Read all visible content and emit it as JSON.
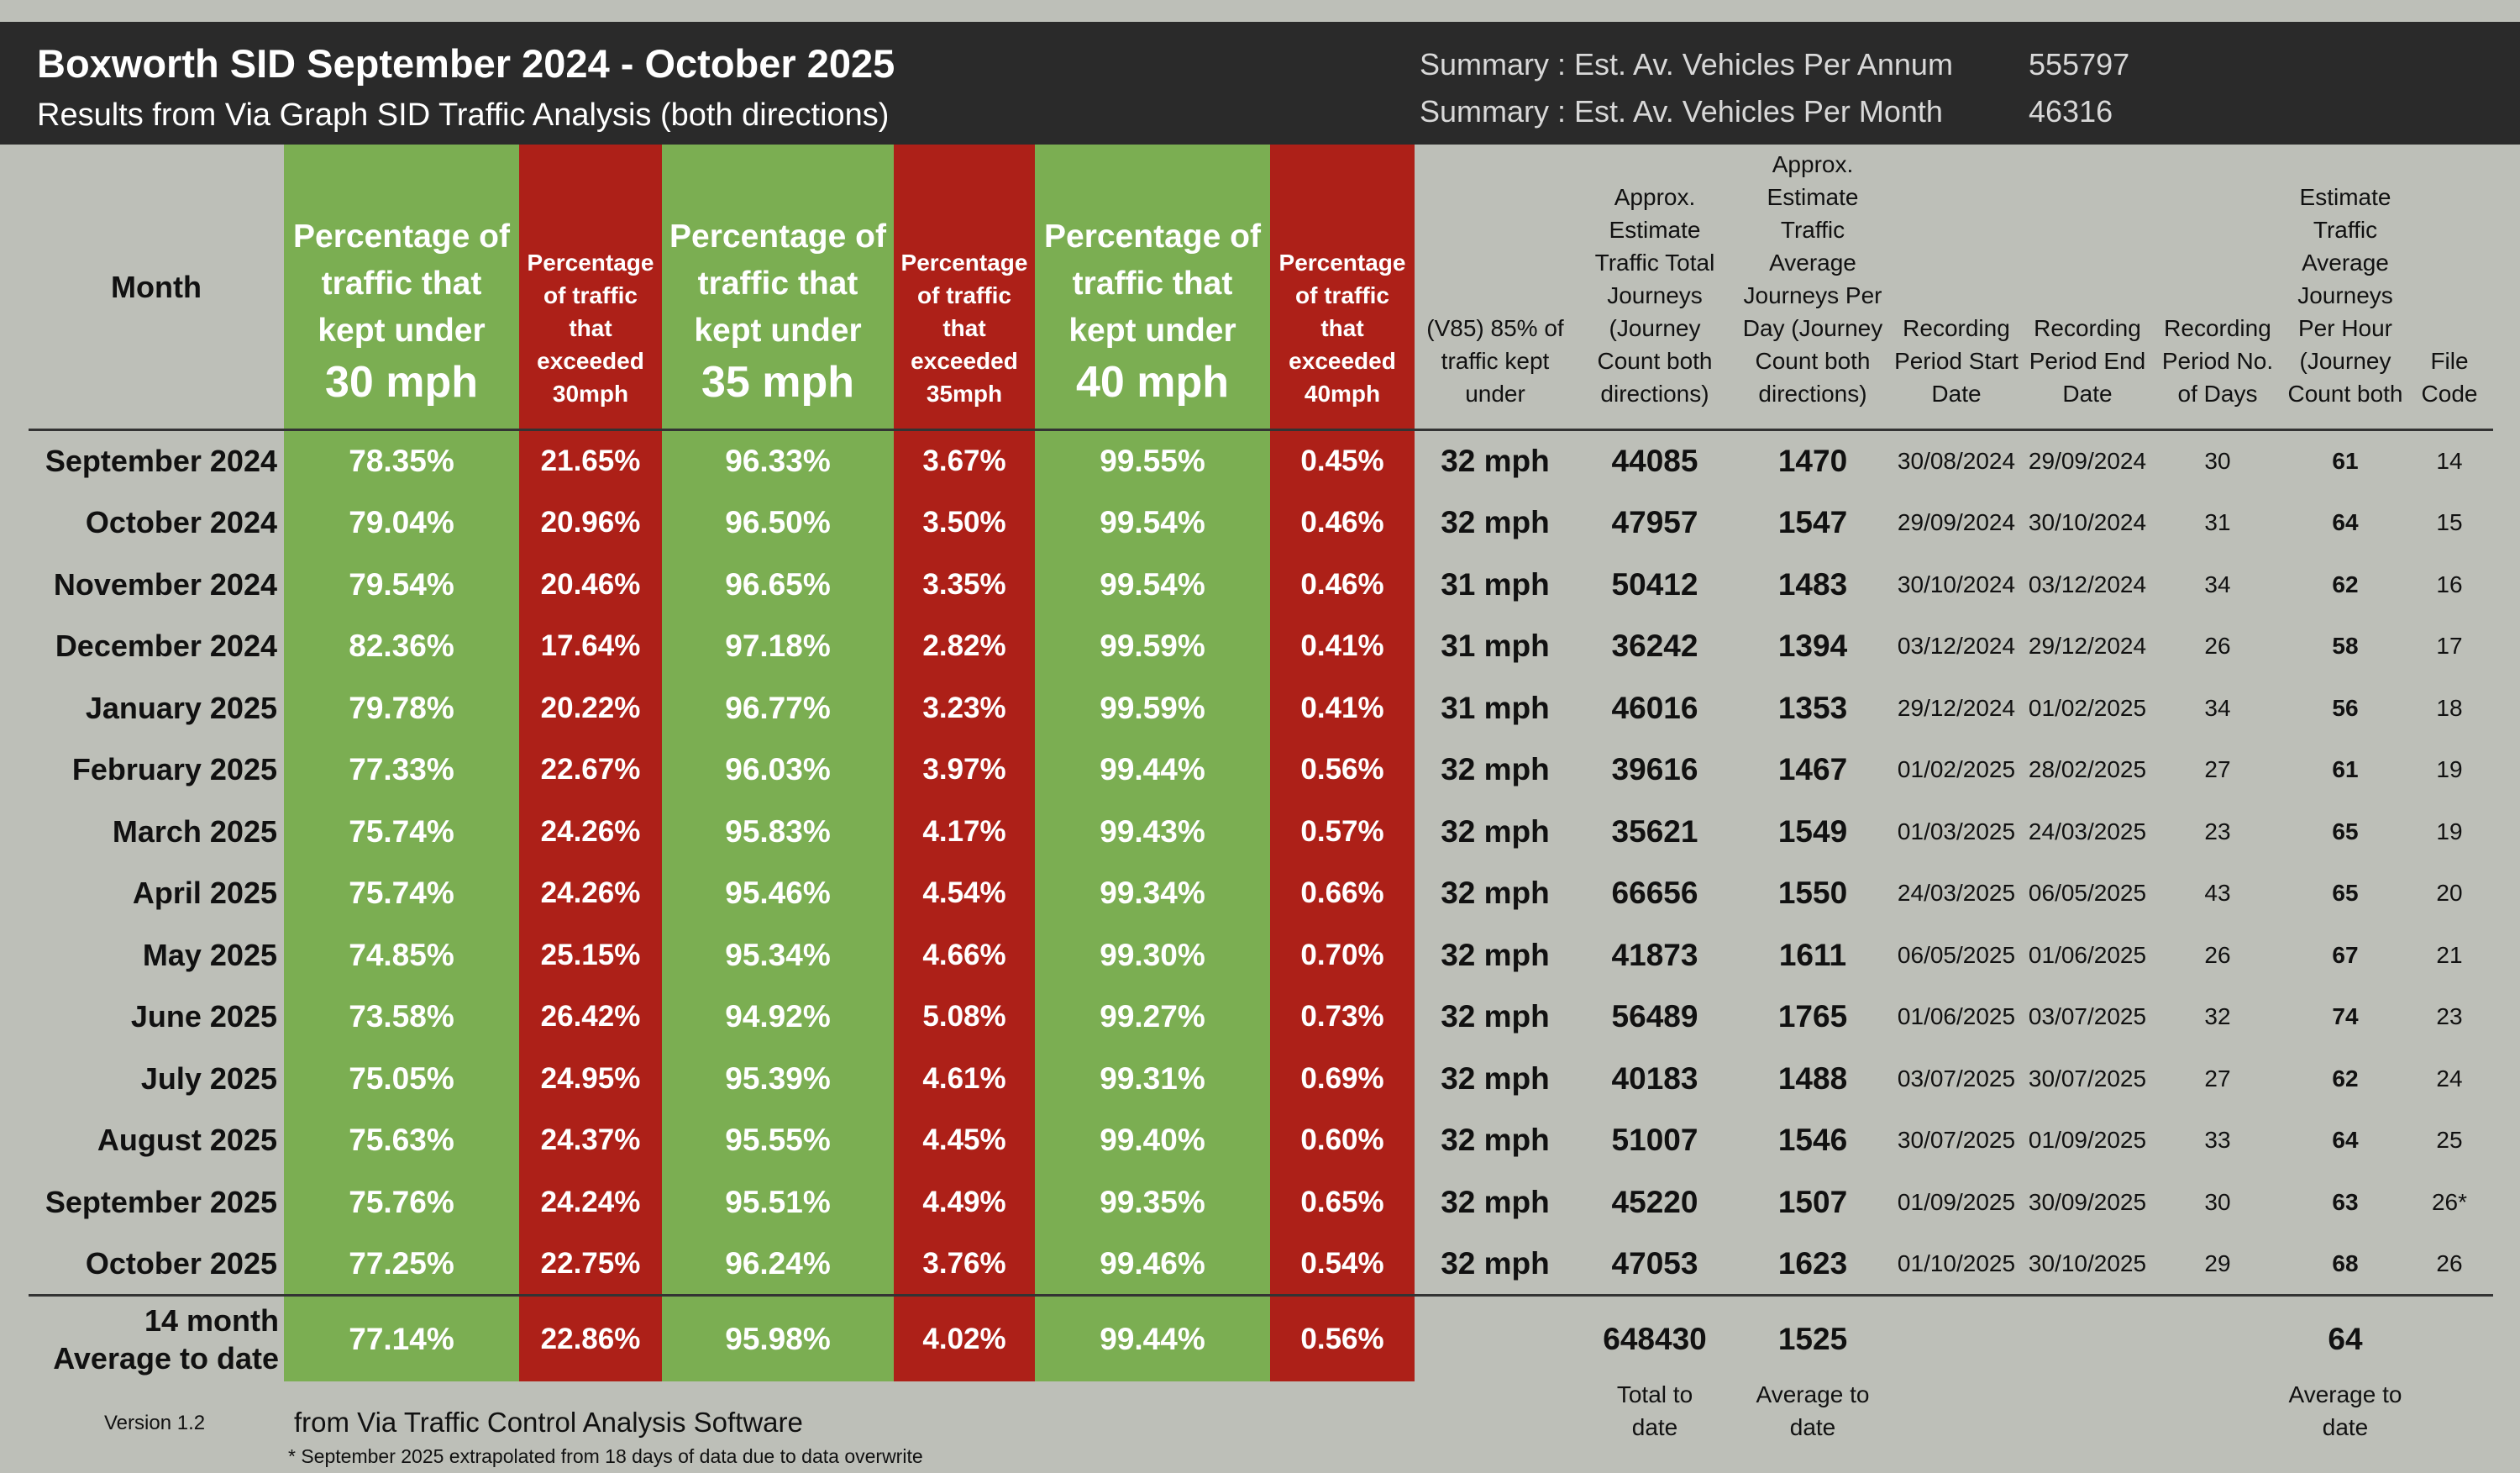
{
  "header": {
    "title": "Boxworth SID September 2024 - October 2025",
    "subtitle": "Results from Via Graph SID Traffic Analysis (both directions)",
    "summary": [
      {
        "label": "Summary : Est. Av. Vehicles Per Annum",
        "value": "555797"
      },
      {
        "label": "Summary : Est. Av. Vehicles Per Month",
        "value": "46316"
      }
    ]
  },
  "columns": {
    "month": "Month",
    "kept30": {
      "text": "Percentage of traffic that kept under",
      "speed": "30 mph"
    },
    "exceeded30": "Percentage of traffic that exceeded 30mph",
    "kept35": {
      "text": "Percentage of traffic that kept under",
      "speed": "35 mph"
    },
    "exceeded35": "Percentage of  traffic that exceeded 35mph",
    "kept40": {
      "text": "Percentage of traffic that kept under",
      "speed": "40 mph"
    },
    "exceeded40": "Percentage of traffic that exceeded 40mph",
    "v85": "(V85) 85% of traffic kept under",
    "total": "Approx. Estimate Traffic Total Journeys (Journey Count both directions)",
    "perday": "Approx. Estimate Traffic Average Journeys Per Day (Journey Count both directions)",
    "start": "Recording Period Start Date",
    "end": "Recording Period End Date",
    "days": "Recording Period No. of Days",
    "perhour": "Estimate Traffic Average Journeys Per Hour (Journey Count both",
    "code": "File Code"
  },
  "rows": [
    {
      "month": "September 2024",
      "k30": "78.35%",
      "e30": "21.65%",
      "k35": "96.33%",
      "e35": "3.67%",
      "k40": "99.55%",
      "e40": "0.45%",
      "v85": "32 mph",
      "total": "44085",
      "perday": "1470",
      "start": "30/08/2024",
      "end": "29/09/2024",
      "days": "30",
      "perhour": "61",
      "code": "14"
    },
    {
      "month": "October 2024",
      "k30": "79.04%",
      "e30": "20.96%",
      "k35": "96.50%",
      "e35": "3.50%",
      "k40": "99.54%",
      "e40": "0.46%",
      "v85": "32 mph",
      "total": "47957",
      "perday": "1547",
      "start": "29/09/2024",
      "end": "30/10/2024",
      "days": "31",
      "perhour": "64",
      "code": "15"
    },
    {
      "month": "November 2024",
      "k30": "79.54%",
      "e30": "20.46%",
      "k35": "96.65%",
      "e35": "3.35%",
      "k40": "99.54%",
      "e40": "0.46%",
      "v85": "31 mph",
      "total": "50412",
      "perday": "1483",
      "start": "30/10/2024",
      "end": "03/12/2024",
      "days": "34",
      "perhour": "62",
      "code": "16"
    },
    {
      "month": "December 2024",
      "k30": "82.36%",
      "e30": "17.64%",
      "k35": "97.18%",
      "e35": "2.82%",
      "k40": "99.59%",
      "e40": "0.41%",
      "v85": "31 mph",
      "total": "36242",
      "perday": "1394",
      "start": "03/12/2024",
      "end": "29/12/2024",
      "days": "26",
      "perhour": "58",
      "code": "17"
    },
    {
      "month": "January 2025",
      "k30": "79.78%",
      "e30": "20.22%",
      "k35": "96.77%",
      "e35": "3.23%",
      "k40": "99.59%",
      "e40": "0.41%",
      "v85": "31 mph",
      "total": "46016",
      "perday": "1353",
      "start": "29/12/2024",
      "end": "01/02/2025",
      "days": "34",
      "perhour": "56",
      "code": "18"
    },
    {
      "month": "February 2025",
      "k30": "77.33%",
      "e30": "22.67%",
      "k35": "96.03%",
      "e35": "3.97%",
      "k40": "99.44%",
      "e40": "0.56%",
      "v85": "32 mph",
      "total": "39616",
      "perday": "1467",
      "start": "01/02/2025",
      "end": "28/02/2025",
      "days": "27",
      "perhour": "61",
      "code": "19"
    },
    {
      "month": "March 2025",
      "k30": "75.74%",
      "e30": "24.26%",
      "k35": "95.83%",
      "e35": "4.17%",
      "k40": "99.43%",
      "e40": "0.57%",
      "v85": "32 mph",
      "total": "35621",
      "perday": "1549",
      "start": "01/03/2025",
      "end": "24/03/2025",
      "days": "23",
      "perhour": "65",
      "code": "19"
    },
    {
      "month": "April 2025",
      "k30": "75.74%",
      "e30": "24.26%",
      "k35": "95.46%",
      "e35": "4.54%",
      "k40": "99.34%",
      "e40": "0.66%",
      "v85": "32 mph",
      "total": "66656",
      "perday": "1550",
      "start": "24/03/2025",
      "end": "06/05/2025",
      "days": "43",
      "perhour": "65",
      "code": "20"
    },
    {
      "month": "May 2025",
      "k30": "74.85%",
      "e30": "25.15%",
      "k35": "95.34%",
      "e35": "4.66%",
      "k40": "99.30%",
      "e40": "0.70%",
      "v85": "32 mph",
      "total": "41873",
      "perday": "1611",
      "start": "06/05/2025",
      "end": "01/06/2025",
      "days": "26",
      "perhour": "67",
      "code": "21"
    },
    {
      "month": "June 2025",
      "k30": "73.58%",
      "e30": "26.42%",
      "k35": "94.92%",
      "e35": "5.08%",
      "k40": "99.27%",
      "e40": "0.73%",
      "v85": "32 mph",
      "total": "56489",
      "perday": "1765",
      "start": "01/06/2025",
      "end": "03/07/2025",
      "days": "32",
      "perhour": "74",
      "code": "23"
    },
    {
      "month": "July 2025",
      "k30": "75.05%",
      "e30": "24.95%",
      "k35": "95.39%",
      "e35": "4.61%",
      "k40": "99.31%",
      "e40": "0.69%",
      "v85": "32 mph",
      "total": "40183",
      "perday": "1488",
      "start": "03/07/2025",
      "end": "30/07/2025",
      "days": "27",
      "perhour": "62",
      "code": "24"
    },
    {
      "month": "August 2025",
      "k30": "75.63%",
      "e30": "24.37%",
      "k35": "95.55%",
      "e35": "4.45%",
      "k40": "99.40%",
      "e40": "0.60%",
      "v85": "32 mph",
      "total": "51007",
      "perday": "1546",
      "start": "30/07/2025",
      "end": "01/09/2025",
      "days": "33",
      "perhour": "64",
      "code": "25"
    },
    {
      "month": "September 2025",
      "k30": "75.76%",
      "e30": "24.24%",
      "k35": "95.51%",
      "e35": "4.49%",
      "k40": "99.35%",
      "e40": "0.65%",
      "v85": "32 mph",
      "total": "45220",
      "perday": "1507",
      "start": "01/09/2025",
      "end": "30/09/2025",
      "days": "30",
      "perhour": "63",
      "code": "26*"
    },
    {
      "month": "October 2025",
      "k30": "77.25%",
      "e30": "22.75%",
      "k35": "96.24%",
      "e35": "3.76%",
      "k40": "99.46%",
      "e40": "0.54%",
      "v85": "32 mph",
      "total": "47053",
      "perday": "1623",
      "start": "01/10/2025",
      "end": "30/10/2025",
      "days": "29",
      "perhour": "68",
      "code": "26"
    }
  ],
  "average": {
    "label_line1": "14 month",
    "label_line2": "Average to date",
    "k30": "77.14%",
    "e30": "22.86%",
    "k35": "95.98%",
    "e35": "4.02%",
    "k40": "99.44%",
    "e40": "0.56%",
    "total": "648430",
    "perday": "1525",
    "perhour": "64"
  },
  "footer": {
    "total_note": "Total to date",
    "perday_note": "Average to date",
    "perhour_note": "Average to date",
    "version": "Version 1.2",
    "source": "from Via Traffic Control Analysis Software",
    "note": "* September 2025 extrapolated from 18 days of data due to data overwrite"
  },
  "colors": {
    "green": "#7bae52",
    "red": "#ad2018",
    "header_bg": "#2a2a2a",
    "page_bg": "#bdbfb8"
  }
}
